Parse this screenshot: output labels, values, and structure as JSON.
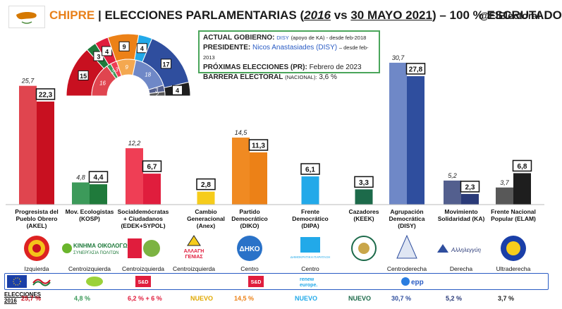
{
  "header": {
    "country": "CHIPRE",
    "title_pre": "ELECCIONES PARLAMENTARIAS (",
    "year_2016": "2016",
    "vs": " vs ",
    "date_2021": "30 MAYO 2021",
    "title_post": ") – 100 % ESCRUTADO",
    "handle": "@ElElectoral"
  },
  "info": {
    "gov_label": "ACTUAL GOBIERNO:",
    "gov_value": "DISY",
    "gov_note": "(apoyo de KA) - desde feb-2018",
    "pres_label": "PRESIDENTE:",
    "pres_value": "Nicos Anastasiades (DISY)",
    "pres_note": "– desde feb-2013",
    "next_label": "PRÓXIMAS ELECCIONES (PR):",
    "next_value": "Febrero de 2023",
    "barrier_label": "BARRERA ELECTORAL",
    "barrier_note": "(NACIONAL):",
    "barrier_value": "3,6 %"
  },
  "chart_data": {
    "type": "bar",
    "categories": [
      "Progresista del Pueblo Obrero (AKEL)",
      "Mov. Ecologistas (KOSP)",
      "Socialdemócratas + Ciudadanos (EDEK+SYPOL)",
      "Cambio Generacional (Anex)",
      "Partido Democrático (DIKO)",
      "Frente Democrático (DIPA)",
      "Cazadores (KEEK)",
      "Agrupación Democrática (DISY)",
      "Movimiento Solidaridad (KA)",
      "Frente Nacional Popular (ELAM)"
    ],
    "series": [
      {
        "name": "2016",
        "values": [
          25.7,
          4.8,
          12.2,
          null,
          14.5,
          null,
          null,
          30.7,
          5.2,
          3.7
        ]
      },
      {
        "name": "2021",
        "values": [
          22.3,
          4.4,
          6.7,
          2.8,
          11.3,
          6.1,
          3.3,
          27.8,
          2.3,
          6.8
        ]
      }
    ],
    "labels_2016": [
      "25,7",
      "4,8",
      "12,2",
      "",
      "14,5",
      "",
      "",
      "30,7",
      "5,2",
      "3,7"
    ],
    "labels_2021": [
      "22,3",
      "4,4",
      "6,7",
      "2,8",
      "11,3",
      "6,1",
      "3,3",
      "27,8",
      "2,3",
      "6,8"
    ],
    "party_lines": [
      [
        "Progresista del",
        "Pueblo Obrero",
        "(AKEL)"
      ],
      [
        "Mov. Ecologistas",
        "(KOSP)"
      ],
      [
        "Socialdemócratas",
        "+ Ciudadanos",
        "(EDEK+SYPOL)"
      ],
      [
        "Cambio",
        "Generacional",
        "(Anex)"
      ],
      [
        "Partido",
        "Democrático",
        "(DIKO)"
      ],
      [
        "Frente",
        "Democrático",
        "(DIPA)"
      ],
      [
        "Cazadores (KEEK)"
      ],
      [
        "Agrupación",
        "Democrática",
        "(DISY)"
      ],
      [
        "Movimiento",
        "Solidaridad (KA)"
      ],
      [
        "Frente Nacional",
        "Popular (ELAM)"
      ]
    ],
    "colors_2016": [
      "#e0454f",
      "#3c9a5a",
      "#ef3e55",
      "#f4c31a",
      "#f08a22",
      "#29a8e8",
      "#1e6b4e",
      "#6f88c7",
      "#535f8e",
      "#585858"
    ],
    "colors_2021": [
      "#c81020",
      "#1f7a3b",
      "#e01d3d",
      "#f6cc1b",
      "#ec8117",
      "#22a9e9",
      "#1c6a4a",
      "#2f4e9e",
      "#2a3a78",
      "#1e1e1e"
    ],
    "ideology": [
      "Izquierda",
      "Centroizquierda",
      "Centroizquierda",
      "Centroizquierda",
      "Centro",
      "Centro",
      "",
      "Centroderecha",
      "Derecha",
      "Ultraderecha"
    ],
    "seats_2021": [
      15,
      3,
      4,
      9,
      4,
      17,
      4
    ],
    "seats_2016": [
      16,
      2,
      3,
      9,
      18,
      3,
      2
    ],
    "seat_colors": [
      "#c81020",
      "#1f7a3b",
      "#e01d3d",
      "#ec8117",
      "#22a9e9",
      "#2f4e9e",
      "#1e1e1e"
    ],
    "seat_colors_2016": [
      "#e0454f",
      "#3c9a5a",
      "#ef3e55",
      "#f4a850",
      "#6f88c7",
      "#535f8e",
      "#585858"
    ]
  },
  "footer": {
    "label_line1": "ELECCIONES",
    "label_line2": "2016",
    "eu_groups": [
      "renew",
      "europe.",
      "epp",
      "S&D",
      "S&D"
    ],
    "results_2016": [
      "25,7 %",
      "4,8 %",
      "6,2 % + 6 %",
      "NUEVO",
      "14,5 %",
      "NUEVO",
      "NUEVO",
      "30,7 %",
      "5,2 %",
      "3,7 %"
    ],
    "results_colors": [
      "#c81020",
      "#3c9a5a",
      "#e01d3d",
      "#e0a800",
      "#ec8117",
      "#22a9e9",
      "#1c6a4a",
      "#2f4e9e",
      "#2a3a78",
      "#1e1e1e"
    ]
  },
  "logos": {
    "text_kosp": "ΚΙΝΗΜΑ ΟΙΚΟΛΟΓΩΝ",
    "text_kosp2": "ΣΥΝΕΡΓΑΣΙΑ ΠΟΛΙΤΩΝ",
    "text_anex": "ΑΛΛΑΓΗ",
    "text_anex2": "ΓΕΝΙΑΣ",
    "text_diko": "ΔΗΚΟ",
    "text_dipa": "ΔΗΜΟΚΡΑΤΙΚΗ ΠΑΡΑΤΑΞΗ",
    "text_ka": "Αλληλεγγύη"
  }
}
